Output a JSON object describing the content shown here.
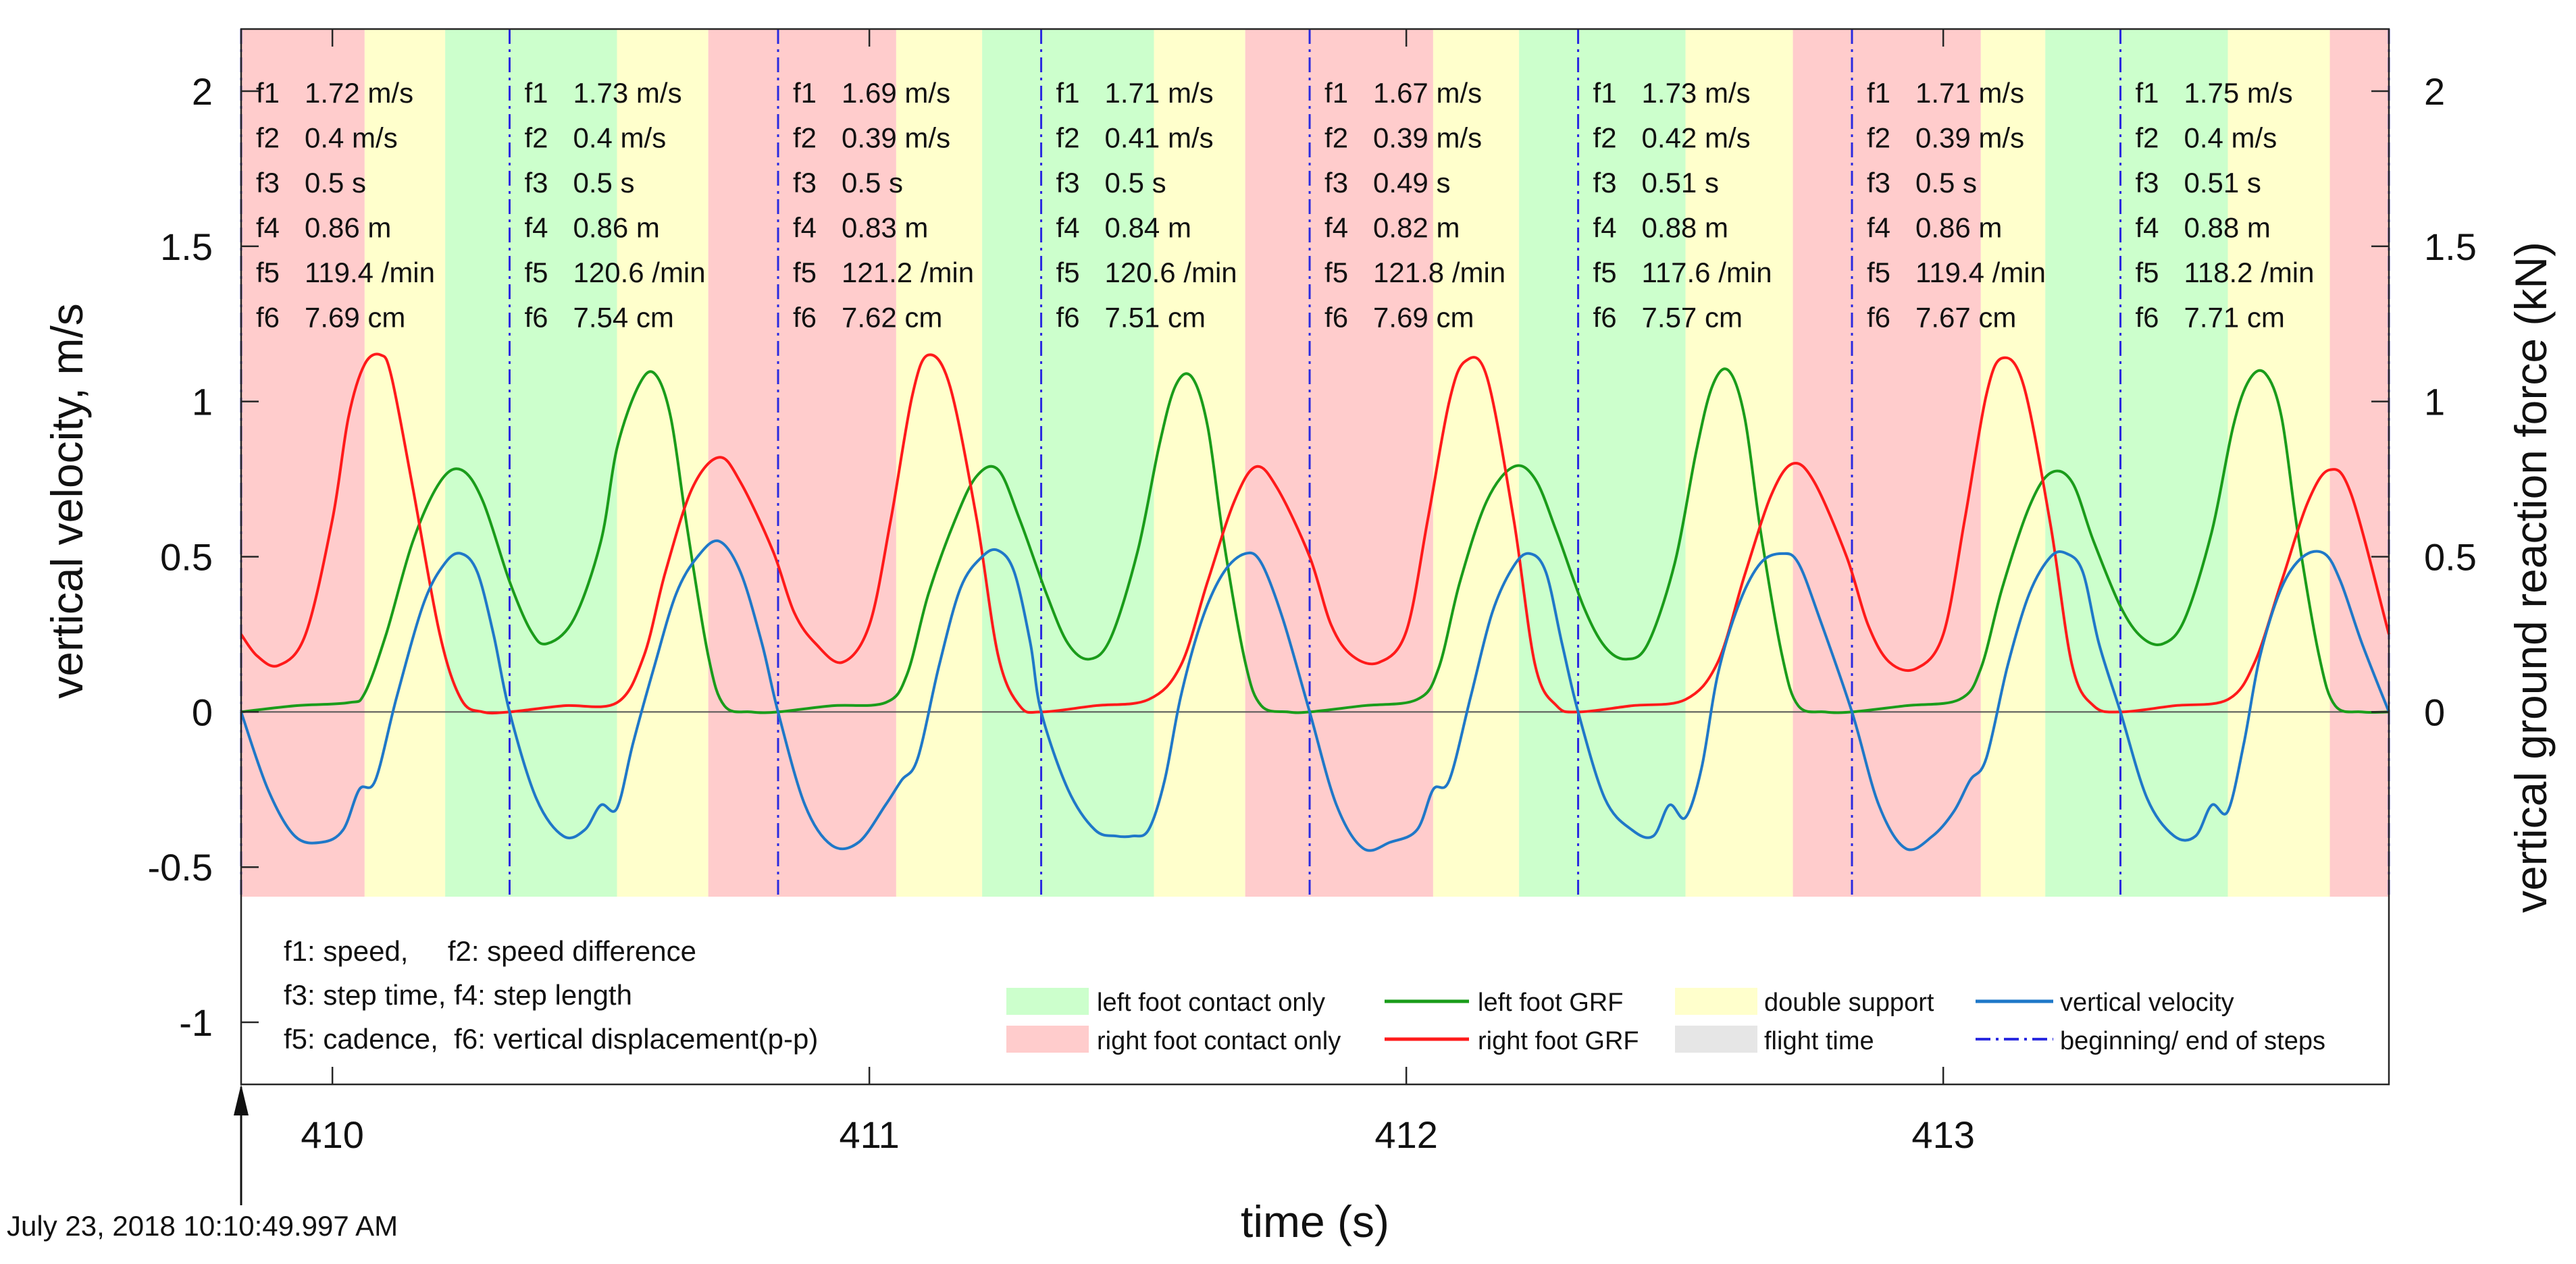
{
  "chart_data": {
    "type": "line",
    "title": "",
    "xlabel": "time (s)",
    "ylabel_left": "vertical velocity, m/s",
    "ylabel_right": "vertical ground reaction force (kN)",
    "xlim": [
      409.83,
      413.83
    ],
    "ylim_left": [
      -1.2,
      2.2
    ],
    "ylim_right": [
      -1.2,
      2.2
    ],
    "x_ticks": [
      410,
      411,
      412,
      413
    ],
    "y_ticks_left": [
      -1,
      -0.5,
      0,
      0.5,
      1,
      1.5,
      2
    ],
    "y_ticks_right": [
      0,
      0.5,
      1,
      1.5,
      2
    ],
    "x_tick_labels": [
      "410",
      "411",
      "412",
      "413"
    ],
    "y_tick_labels_left": [
      "-1",
      "-0.5",
      "0",
      "0.5",
      "1",
      "1.5",
      "2"
    ],
    "y_tick_labels_right": [
      "0",
      "0.5",
      "1",
      "1.5",
      "2"
    ],
    "timestamp": "July 23, 2018 10:10:49.997 AM",
    "colors": {
      "left_contact": "#ccffcc",
      "right_contact": "#ffcccc",
      "double_support": "#ffffcc",
      "flight": "#e6e6e6",
      "left_grf": "#1a9c1a",
      "right_grf": "#ff1a1a",
      "velocity": "#1f78c8",
      "step_line": "#2a2ae0"
    },
    "step_boundaries": [
      409.83,
      410.33,
      410.83,
      411.32,
      411.82,
      412.32,
      412.83,
      413.33,
      413.83
    ],
    "phases": [
      {
        "type": "right",
        "start": 409.83,
        "end": 410.06
      },
      {
        "type": "double",
        "start": 410.06,
        "end": 410.21
      },
      {
        "type": "left",
        "start": 410.21,
        "end": 410.53
      },
      {
        "type": "double",
        "start": 410.53,
        "end": 410.7
      },
      {
        "type": "right",
        "start": 410.7,
        "end": 411.05
      },
      {
        "type": "double",
        "start": 411.05,
        "end": 411.21
      },
      {
        "type": "left",
        "start": 411.21,
        "end": 411.53
      },
      {
        "type": "double",
        "start": 411.53,
        "end": 411.7
      },
      {
        "type": "right",
        "start": 411.7,
        "end": 412.05
      },
      {
        "type": "double",
        "start": 412.05,
        "end": 412.21
      },
      {
        "type": "left",
        "start": 412.21,
        "end": 412.52
      },
      {
        "type": "double",
        "start": 412.52,
        "end": 412.72
      },
      {
        "type": "right",
        "start": 412.72,
        "end": 413.07
      },
      {
        "type": "double",
        "start": 413.07,
        "end": 413.19
      },
      {
        "type": "left",
        "start": 413.19,
        "end": 413.53
      },
      {
        "type": "double",
        "start": 413.53,
        "end": 413.72
      },
      {
        "type": "right",
        "start": 413.72,
        "end": 413.83
      }
    ],
    "series": [
      {
        "name": "left foot GRF",
        "axis": "right",
        "x": [
          409.83,
          409.93,
          410.03,
          410.06,
          410.1,
          410.15,
          410.2,
          410.24,
          410.28,
          410.33,
          410.37,
          410.4,
          410.45,
          410.5,
          410.53,
          410.57,
          410.6,
          410.63,
          410.66,
          410.7,
          410.73,
          410.78,
          410.83,
          410.93,
          411.03,
          411.07,
          411.11,
          411.16,
          411.2,
          411.24,
          411.28,
          411.33,
          411.37,
          411.41,
          411.45,
          411.5,
          411.54,
          411.57,
          411.6,
          411.63,
          411.66,
          411.7,
          411.73,
          411.78,
          411.82,
          411.92,
          412.02,
          412.06,
          412.1,
          412.15,
          412.2,
          412.24,
          412.28,
          412.33,
          412.37,
          412.41,
          412.45,
          412.5,
          412.54,
          412.57,
          412.6,
          412.63,
          412.66,
          412.7,
          412.73,
          412.78,
          412.83,
          412.93,
          413.03,
          413.07,
          413.11,
          413.16,
          413.2,
          413.24,
          413.28,
          413.33,
          413.37,
          413.41,
          413.45,
          413.5,
          413.54,
          413.57,
          413.6,
          413.63,
          413.66,
          413.7,
          413.73,
          413.78,
          413.83
        ],
        "y": [
          0.0,
          0.02,
          0.03,
          0.06,
          0.25,
          0.55,
          0.74,
          0.78,
          0.68,
          0.42,
          0.26,
          0.22,
          0.3,
          0.55,
          0.85,
          1.05,
          1.09,
          0.95,
          0.6,
          0.18,
          0.02,
          0.0,
          0.0,
          0.02,
          0.03,
          0.12,
          0.38,
          0.62,
          0.76,
          0.78,
          0.62,
          0.38,
          0.22,
          0.17,
          0.24,
          0.52,
          0.86,
          1.05,
          1.08,
          0.92,
          0.55,
          0.16,
          0.02,
          0.0,
          0.0,
          0.02,
          0.04,
          0.14,
          0.42,
          0.68,
          0.79,
          0.75,
          0.58,
          0.34,
          0.21,
          0.17,
          0.22,
          0.48,
          0.84,
          1.05,
          1.1,
          0.95,
          0.58,
          0.18,
          0.02,
          0.0,
          0.0,
          0.02,
          0.04,
          0.14,
          0.4,
          0.66,
          0.77,
          0.74,
          0.55,
          0.34,
          0.24,
          0.22,
          0.3,
          0.58,
          0.92,
          1.07,
          1.09,
          0.95,
          0.58,
          0.18,
          0.02,
          0.0,
          0.0
        ]
      },
      {
        "name": "right foot GRF",
        "axis": "right",
        "x": [
          409.83,
          409.86,
          409.9,
          409.95,
          410.0,
          410.03,
          410.06,
          410.09,
          410.11,
          410.15,
          410.2,
          410.24,
          410.28,
          410.33,
          410.43,
          410.53,
          410.58,
          410.62,
          410.67,
          410.72,
          410.76,
          410.82,
          410.86,
          410.9,
          410.95,
          411.0,
          411.04,
          411.08,
          411.11,
          411.15,
          411.2,
          411.24,
          411.28,
          411.32,
          411.42,
          411.52,
          411.58,
          411.63,
          411.68,
          411.72,
          411.76,
          411.82,
          411.86,
          411.9,
          411.95,
          412.0,
          412.04,
          412.08,
          412.11,
          412.15,
          412.2,
          412.24,
          412.28,
          412.32,
          412.42,
          412.52,
          412.58,
          412.63,
          412.68,
          412.72,
          412.76,
          412.82,
          412.86,
          412.9,
          412.95,
          413.0,
          413.04,
          413.08,
          413.11,
          413.15,
          413.2,
          413.24,
          413.28,
          413.33,
          413.43,
          413.53,
          413.58,
          413.63,
          413.68,
          413.72,
          413.76,
          413.83
        ],
        "y": [
          0.25,
          0.18,
          0.15,
          0.25,
          0.62,
          0.95,
          1.12,
          1.15,
          1.08,
          0.72,
          0.25,
          0.04,
          0.0,
          0.0,
          0.02,
          0.03,
          0.18,
          0.45,
          0.72,
          0.82,
          0.74,
          0.52,
          0.32,
          0.22,
          0.16,
          0.28,
          0.62,
          1.02,
          1.15,
          1.05,
          0.62,
          0.18,
          0.02,
          0.0,
          0.02,
          0.04,
          0.15,
          0.42,
          0.68,
          0.79,
          0.72,
          0.5,
          0.28,
          0.18,
          0.16,
          0.26,
          0.62,
          1.0,
          1.13,
          1.08,
          0.62,
          0.15,
          0.02,
          0.0,
          0.02,
          0.04,
          0.16,
          0.44,
          0.7,
          0.8,
          0.74,
          0.5,
          0.28,
          0.16,
          0.14,
          0.25,
          0.62,
          1.02,
          1.14,
          1.05,
          0.6,
          0.15,
          0.02,
          0.0,
          0.02,
          0.04,
          0.16,
          0.42,
          0.68,
          0.78,
          0.7,
          0.25
        ]
      },
      {
        "name": "vertical velocity",
        "axis": "left",
        "x": [
          409.83,
          409.88,
          409.93,
          409.98,
          410.02,
          410.05,
          410.08,
          410.12,
          410.17,
          410.21,
          410.24,
          410.27,
          410.3,
          410.33,
          410.38,
          410.43,
          410.47,
          410.5,
          410.53,
          410.56,
          410.6,
          410.64,
          410.68,
          410.72,
          410.76,
          410.8,
          410.83,
          410.88,
          410.93,
          410.98,
          411.03,
          411.06,
          411.09,
          411.13,
          411.17,
          411.21,
          411.24,
          411.27,
          411.3,
          411.32,
          411.37,
          411.42,
          411.46,
          411.49,
          411.52,
          411.55,
          411.58,
          411.62,
          411.66,
          411.7,
          411.73,
          411.77,
          411.82,
          411.87,
          411.92,
          411.97,
          412.02,
          412.05,
          412.08,
          412.12,
          412.16,
          412.2,
          412.23,
          412.26,
          412.29,
          412.32,
          412.37,
          412.42,
          412.46,
          412.49,
          412.52,
          412.55,
          412.58,
          412.62,
          412.66,
          412.7,
          412.73,
          412.77,
          412.83,
          412.88,
          412.93,
          412.98,
          413.02,
          413.05,
          413.08,
          413.12,
          413.16,
          413.2,
          413.23,
          413.26,
          413.29,
          413.33,
          413.38,
          413.43,
          413.47,
          413.5,
          413.53,
          413.56,
          413.59,
          413.63,
          413.67,
          413.71,
          413.74,
          413.78,
          413.83
        ],
        "y": [
          0.0,
          -0.25,
          -0.4,
          -0.42,
          -0.38,
          -0.25,
          -0.22,
          0.05,
          0.35,
          0.48,
          0.51,
          0.45,
          0.25,
          0.0,
          -0.28,
          -0.4,
          -0.38,
          -0.3,
          -0.31,
          -0.1,
          0.15,
          0.38,
          0.5,
          0.55,
          0.45,
          0.22,
          0.0,
          -0.3,
          -0.43,
          -0.42,
          -0.3,
          -0.22,
          -0.15,
          0.15,
          0.4,
          0.5,
          0.52,
          0.45,
          0.22,
          0.0,
          -0.25,
          -0.38,
          -0.4,
          -0.4,
          -0.38,
          -0.22,
          0.05,
          0.3,
          0.45,
          0.51,
          0.48,
          0.3,
          0.0,
          -0.3,
          -0.44,
          -0.42,
          -0.38,
          -0.25,
          -0.22,
          0.05,
          0.32,
          0.47,
          0.51,
          0.45,
          0.22,
          0.0,
          -0.28,
          -0.38,
          -0.4,
          -0.3,
          -0.34,
          -0.18,
          0.12,
          0.35,
          0.48,
          0.51,
          0.48,
          0.3,
          0.0,
          -0.3,
          -0.44,
          -0.4,
          -0.32,
          -0.22,
          -0.15,
          0.15,
          0.38,
          0.5,
          0.51,
          0.45,
          0.22,
          0.0,
          -0.28,
          -0.4,
          -0.4,
          -0.3,
          -0.32,
          -0.1,
          0.18,
          0.4,
          0.5,
          0.51,
          0.42,
          0.22,
          0.0
        ]
      }
    ],
    "step_stats": [
      {
        "f1": "1.72 m/s",
        "f2": "0.4 m/s",
        "f3": "0.5 s",
        "f4": "0.86 m",
        "f5": "119.4 /min",
        "f6": "7.69 cm"
      },
      {
        "f1": "1.73 m/s",
        "f2": "0.4 m/s",
        "f3": "0.5 s",
        "f4": "0.86 m",
        "f5": "120.6 /min",
        "f6": "7.54 cm"
      },
      {
        "f1": "1.69 m/s",
        "f2": "0.39 m/s",
        "f3": "0.5 s",
        "f4": "0.83 m",
        "f5": "121.2 /min",
        "f6": "7.62 cm"
      },
      {
        "f1": "1.71 m/s",
        "f2": "0.41 m/s",
        "f3": "0.5 s",
        "f4": "0.84 m",
        "f5": "120.6 /min",
        "f6": "7.51 cm"
      },
      {
        "f1": "1.67 m/s",
        "f2": "0.39 m/s",
        "f3": "0.49 s",
        "f4": "0.82 m",
        "f5": "121.8 /min",
        "f6": "7.69 cm"
      },
      {
        "f1": "1.73 m/s",
        "f2": "0.42 m/s",
        "f3": "0.51 s",
        "f4": "0.88 m",
        "f5": "117.6 /min",
        "f6": "7.57 cm"
      },
      {
        "f1": "1.71 m/s",
        "f2": "0.39 m/s",
        "f3": "0.5 s",
        "f4": "0.86 m",
        "f5": "119.4 /min",
        "f6": "7.67 cm"
      },
      {
        "f1": "1.75 m/s",
        "f2": "0.4 m/s",
        "f3": "0.51 s",
        "f4": "0.88 m",
        "f5": "118.2 /min",
        "f6": "7.71 cm"
      }
    ],
    "feature_legend": [
      "f1: speed,     f2: speed difference",
      "f3: step time, f4: step length",
      "f5: cadence,  f6: vertical displacement(p-p)"
    ],
    "legend": {
      "left_contact": "left foot contact only",
      "right_contact": "right foot contact only",
      "left_grf": "left foot GRF",
      "right_grf": "right foot GRF",
      "double_support": "double support",
      "flight": "flight time",
      "velocity": "vertical velocity",
      "steps": "beginning/ end of steps"
    }
  }
}
